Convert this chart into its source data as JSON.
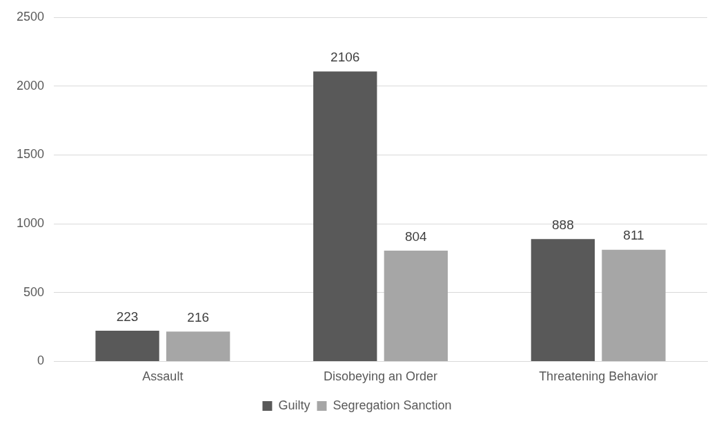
{
  "chart_data": {
    "type": "bar",
    "categories": [
      "Assault",
      "Disobeying an Order",
      "Threatening Behavior"
    ],
    "series": [
      {
        "name": "Guilty",
        "color": "#595959",
        "values": [
          223,
          2106,
          888
        ]
      },
      {
        "name": "Segregation Sanction",
        "color": "#a6a6a6",
        "values": [
          216,
          804,
          811
        ]
      }
    ],
    "ylim": [
      0,
      2500
    ],
    "yticks": [
      0,
      500,
      1000,
      1500,
      2000,
      2500
    ],
    "grid": "y",
    "legend": "bottom",
    "data_labels": true
  }
}
